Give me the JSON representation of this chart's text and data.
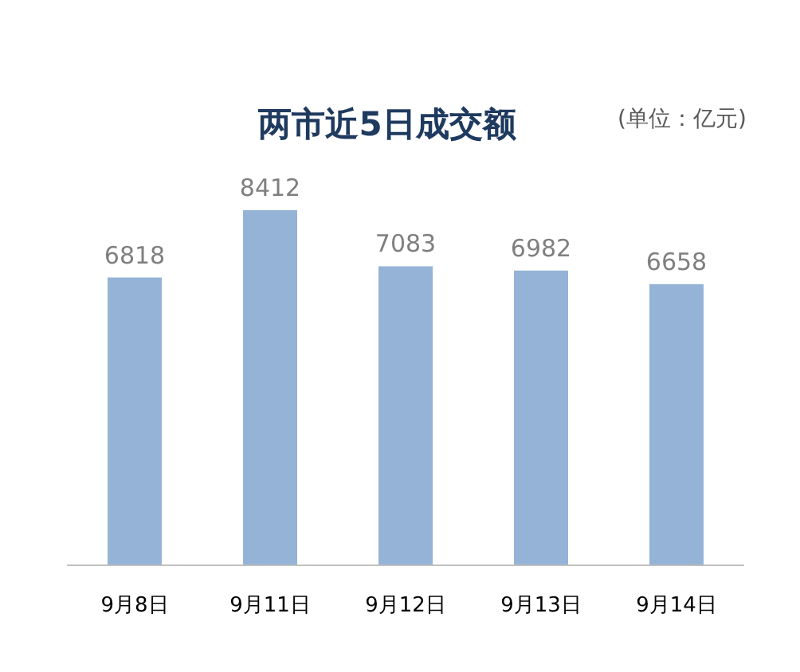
{
  "chart_data": {
    "type": "bar",
    "title": "两市近5日成交额",
    "annotations": [
      "(单位：亿元)"
    ],
    "categories": [
      "9月8日",
      "9月11日",
      "9月12日",
      "9月13日",
      "9月14日"
    ],
    "values": [
      6818,
      8412,
      7083,
      6982,
      6658
    ],
    "color": "#95b3d7",
    "data_labels": true
  }
}
